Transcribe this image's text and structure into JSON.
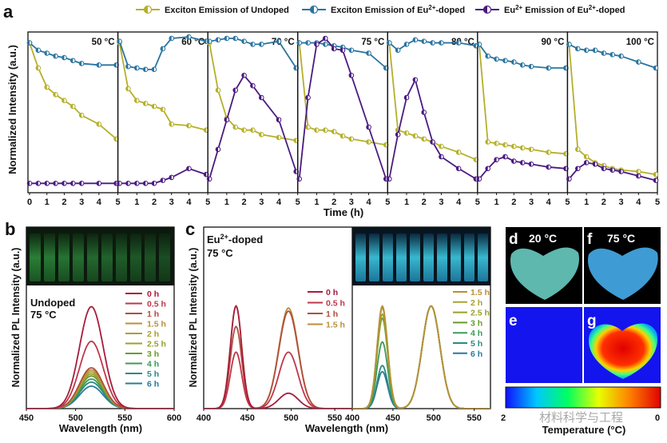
{
  "panel_letters": {
    "a": "a",
    "b": "b",
    "c": "c",
    "d": "d",
    "e": "e",
    "f": "f",
    "g": "g"
  },
  "colors": {
    "undoped": "#b5b02a",
    "eu_exciton": "#2a74a0",
    "eu_emission": "#4a1a80",
    "spec_0h": "#a81c3c",
    "spec_05h": "#c0364a",
    "spec_1h": "#b04e3e",
    "spec_15h": "#b8903a",
    "spec_2h": "#aaa030",
    "spec_25h": "#98a02e",
    "spec_3h": "#6a9a2e",
    "spec_4h": "#3c9a5a",
    "spec_5h": "#2c8a80",
    "spec_6h": "#2a7a9a"
  },
  "chart_data": [
    {
      "id": "a",
      "type": "line",
      "title": "",
      "ylabel": "Normalized Intensity (a.u.)",
      "xlabel": "Time (h)",
      "legend": [
        {
          "name": "Exciton Emission of Undoped",
          "key": "undoped"
        },
        {
          "name": "Exciton Emission of Eu",
          "sup": "2+",
          "suffix": "-doped",
          "key": "eu_exciton"
        },
        {
          "name": "Eu",
          "sup": "2+",
          "suffix": " Emission of Eu",
          "sup2": "2+",
          "suffix2": "-doped",
          "key": "eu_emission"
        }
      ],
      "xticks": [
        0,
        1,
        2,
        3,
        4,
        5
      ],
      "xlim": [
        0,
        5
      ],
      "ylim": [
        0,
        1
      ],
      "x": [
        0,
        0.5,
        1,
        1.5,
        2,
        2.5,
        3,
        4,
        5
      ],
      "subplots": [
        {
          "label": "50 °C",
          "undoped": [
            0.97,
            0.8,
            0.67,
            0.62,
            0.58,
            0.54,
            0.48,
            0.42,
            0.32
          ],
          "eu_exciton": [
            0.97,
            0.92,
            0.9,
            0.88,
            0.87,
            0.85,
            0.83,
            0.82,
            0.82
          ],
          "eu_emission": [
            0.02,
            0.02,
            0.02,
            0.02,
            0.02,
            0.02,
            0.02,
            0.02,
            0.02
          ]
        },
        {
          "label": "60 °C",
          "undoped": [
            0.97,
            0.66,
            0.58,
            0.56,
            0.54,
            0.52,
            0.42,
            0.41,
            0.38
          ],
          "eu_exciton": [
            0.98,
            0.81,
            0.8,
            0.79,
            0.79,
            0.93,
            1.0,
            1.01,
            0.98
          ],
          "eu_emission": [
            0.02,
            0.02,
            0.02,
            0.02,
            0.02,
            0.04,
            0.06,
            0.12,
            0.08
          ]
        },
        {
          "label": "70 °C",
          "undoped": [
            0.97,
            0.65,
            0.46,
            0.4,
            0.38,
            0.38,
            0.35,
            0.33,
            0.31
          ],
          "eu_exciton": [
            0.98,
            0.99,
            1.0,
            1.0,
            0.98,
            0.96,
            0.96,
            0.98,
            0.8
          ],
          "eu_emission": [
            0.05,
            0.25,
            0.45,
            0.65,
            0.75,
            0.68,
            0.6,
            0.45,
            0.1
          ]
        },
        {
          "label": "75 °C",
          "undoped": [
            0.97,
            0.4,
            0.38,
            0.38,
            0.37,
            0.34,
            0.32,
            0.3,
            0.28
          ],
          "eu_exciton": [
            0.97,
            0.97,
            0.97,
            0.96,
            0.95,
            0.94,
            0.92,
            0.9,
            0.8
          ],
          "eu_emission": [
            0.05,
            0.6,
            0.96,
            1.0,
            0.93,
            0.92,
            0.75,
            0.4,
            0.05
          ]
        },
        {
          "label": "80 °C",
          "undoped": [
            0.97,
            0.38,
            0.36,
            0.34,
            0.32,
            0.3,
            0.27,
            0.23,
            0.18
          ],
          "eu_exciton": [
            0.97,
            0.92,
            0.96,
            0.99,
            0.98,
            0.97,
            0.97,
            0.97,
            0.95
          ],
          "eu_emission": [
            0.05,
            0.35,
            0.6,
            0.72,
            0.5,
            0.3,
            0.2,
            0.12,
            0.05
          ]
        },
        {
          "label": "90 °C",
          "undoped": [
            0.96,
            0.3,
            0.29,
            0.28,
            0.27,
            0.26,
            0.25,
            0.23,
            0.22
          ],
          "eu_exciton": [
            0.96,
            0.88,
            0.86,
            0.85,
            0.84,
            0.82,
            0.81,
            0.8,
            0.8
          ],
          "eu_emission": [
            0.05,
            0.12,
            0.18,
            0.2,
            0.17,
            0.16,
            0.15,
            0.13,
            0.12
          ]
        },
        {
          "label": "100 °C",
          "undoped": [
            0.96,
            0.25,
            0.2,
            0.16,
            0.14,
            0.12,
            0.11,
            0.1,
            0.08
          ],
          "eu_exciton": [
            0.96,
            0.93,
            0.92,
            0.92,
            0.9,
            0.89,
            0.88,
            0.84,
            0.8
          ],
          "eu_emission": [
            0.05,
            0.12,
            0.16,
            0.15,
            0.12,
            0.11,
            0.1,
            0.07,
            0.04
          ]
        }
      ]
    },
    {
      "id": "b",
      "type": "line",
      "ylabel": "Normalized PL Intensity (a.u.)",
      "xlabel": "Wavelength (nm)",
      "xticks": [
        450,
        500,
        550,
        600
      ],
      "xlim": [
        450,
        600
      ],
      "ylim": [
        0,
        1.2
      ],
      "note_lines": [
        "Undoped",
        "75 °C"
      ],
      "center_nm": 516,
      "width_nm": 12,
      "series": [
        {
          "name": "0 h",
          "key": "spec_0h",
          "peak": 1.0
        },
        {
          "name": "0.5 h",
          "key": "spec_05h",
          "peak": 0.66
        },
        {
          "name": "1 h",
          "key": "spec_1h",
          "peak": 0.4
        },
        {
          "name": "1.5 h",
          "key": "spec_15h",
          "peak": 0.38
        },
        {
          "name": "2 h",
          "key": "spec_2h",
          "peak": 0.36
        },
        {
          "name": "2.5 h",
          "key": "spec_25h",
          "peak": 0.34
        },
        {
          "name": "3 h",
          "key": "spec_3h",
          "peak": 0.32
        },
        {
          "name": "4 h",
          "key": "spec_4h",
          "peak": 0.29
        },
        {
          "name": "5 h",
          "key": "spec_5h",
          "peak": 0.26
        },
        {
          "name": "6 h",
          "key": "spec_6h",
          "peak": 0.22
        }
      ]
    },
    {
      "id": "c",
      "type": "line",
      "ylabel": "Normalized PL Intensity (a.u.)",
      "xlabel": "Wavelength (nm)",
      "xticks_left": [
        400,
        450,
        500,
        550
      ],
      "xticks_right": [
        400,
        450,
        500,
        550
      ],
      "xlim": [
        400,
        570
      ],
      "ylim": [
        0,
        1.2
      ],
      "note_lines": [
        "Eu",
        "2+",
        "-doped",
        "75 °C"
      ],
      "exciton_nm": 437,
      "eu_nm": 497,
      "left_series": [
        {
          "name": "0 h",
          "key": "spec_0h",
          "exciton": 1.0,
          "eu": 0.15
        },
        {
          "name": "0.5 h",
          "key": "spec_05h",
          "exciton": 0.55,
          "eu": 0.55
        },
        {
          "name": "1 h",
          "key": "spec_1h",
          "exciton": 0.8,
          "eu": 0.95
        },
        {
          "name": "1.5 h",
          "key": "spec_15h",
          "exciton": 1.0,
          "eu": 0.98
        }
      ],
      "right_series": [
        {
          "name": "1.5 h",
          "key": "spec_15h",
          "exciton": 1.0,
          "eu": 1.0
        },
        {
          "name": "2 h",
          "key": "spec_2h",
          "exciton": 0.98,
          "eu": 1.0
        },
        {
          "name": "2.5 h",
          "key": "spec_25h",
          "exciton": 0.92,
          "eu": 1.0
        },
        {
          "name": "3 h",
          "key": "spec_3h",
          "exciton": 0.88,
          "eu": 1.0
        },
        {
          "name": "4 h",
          "key": "spec_4h",
          "exciton": 0.65,
          "eu": 1.0
        },
        {
          "name": "5 h",
          "key": "spec_5h",
          "exciton": 0.42,
          "eu": 1.0
        },
        {
          "name": "6 h",
          "key": "spec_6h",
          "exciton": 0.36,
          "eu": 1.0
        }
      ]
    }
  ],
  "photos": {
    "d_label": "20 °C",
    "f_label": "75 °C",
    "temperature_axis": "Temperature (°C)",
    "colorbar_ticks_left": "2",
    "colorbar_ticks_right": "0",
    "watermark": "材料科学与工程"
  }
}
